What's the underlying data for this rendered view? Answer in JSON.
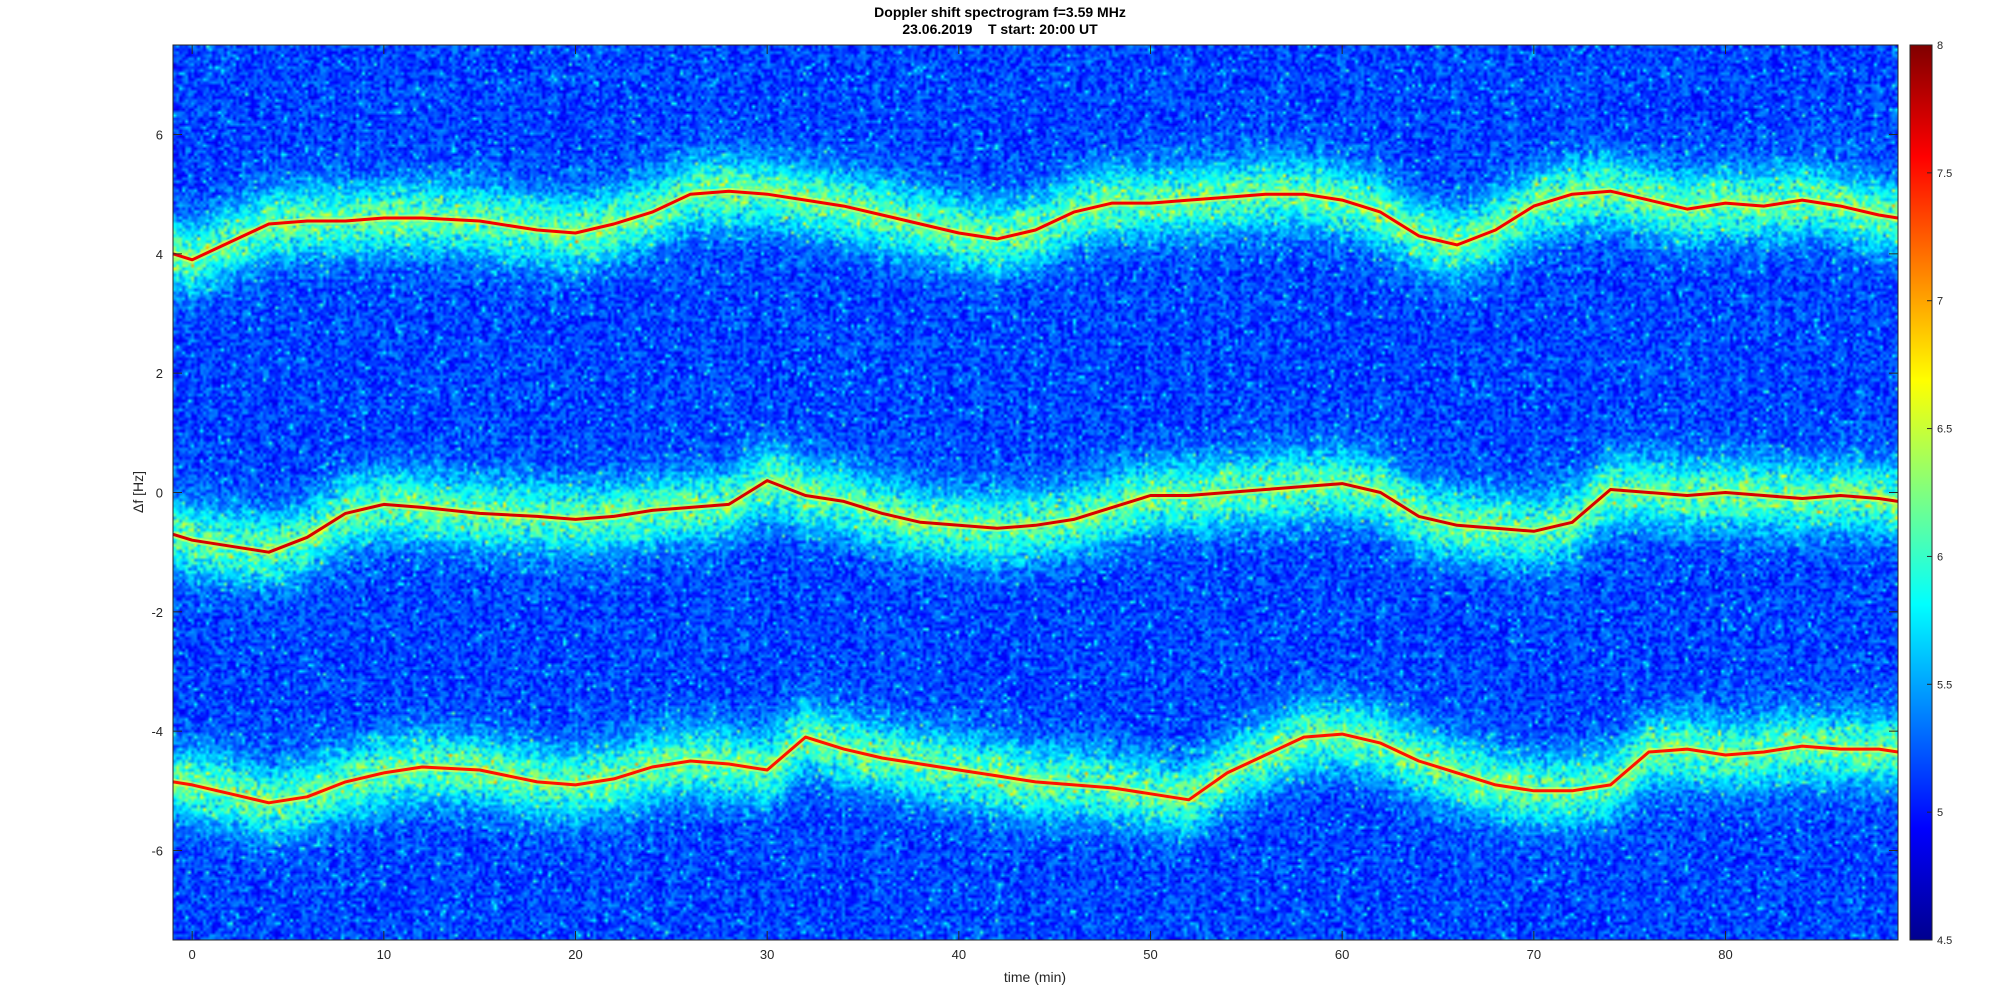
{
  "chart_data": {
    "type": "heatmap",
    "title": "Doppler shift spectrogram f=3.59 MHz",
    "subtitle": "23.06.2019    T start: 20:00 UT",
    "xlabel": "time (min)",
    "ylabel": "Δf [Hz]",
    "xlim": [
      -1,
      89
    ],
    "ylim": [
      -7.5,
      7.5
    ],
    "x_ticks": [
      0,
      10,
      20,
      30,
      40,
      50,
      60,
      70,
      80
    ],
    "y_ticks": [
      -6,
      -4,
      -2,
      0,
      2,
      4,
      6
    ],
    "colorbar": {
      "colormap": "jet",
      "range": [
        4.5,
        8
      ],
      "ticks": [
        4.5,
        5,
        5.5,
        6,
        6.5,
        7,
        7.5,
        8
      ]
    },
    "grid": false,
    "traces": [
      {
        "x": [
          -1,
          0,
          2,
          4,
          6,
          8,
          10,
          12,
          15,
          18,
          20,
          22,
          24,
          26,
          28,
          30,
          32,
          34,
          36,
          38,
          40,
          42,
          44,
          46,
          48,
          50,
          52,
          54,
          56,
          58,
          60,
          62,
          64,
          66,
          68,
          70,
          72,
          74,
          76,
          78,
          80,
          82,
          84,
          86,
          88,
          89
        ],
        "y": [
          4.0,
          3.9,
          4.2,
          4.5,
          4.55,
          4.55,
          4.6,
          4.6,
          4.55,
          4.4,
          4.35,
          4.5,
          4.7,
          5.0,
          5.05,
          5.0,
          4.9,
          4.8,
          4.65,
          4.5,
          4.35,
          4.25,
          4.4,
          4.7,
          4.85,
          4.85,
          4.9,
          4.95,
          5.0,
          5.0,
          4.9,
          4.7,
          4.3,
          4.15,
          4.4,
          4.8,
          5.0,
          5.05,
          4.9,
          4.75,
          4.85,
          4.8,
          4.9,
          4.8,
          4.65,
          4.6
        ],
        "intensity": 7.6
      },
      {
        "x": [
          -1,
          0,
          2,
          4,
          6,
          8,
          10,
          12,
          15,
          18,
          20,
          22,
          24,
          26,
          28,
          30,
          32,
          34,
          36,
          38,
          40,
          42,
          44,
          46,
          48,
          50,
          52,
          54,
          56,
          58,
          60,
          62,
          64,
          66,
          68,
          70,
          72,
          74,
          76,
          78,
          80,
          82,
          84,
          86,
          88,
          89
        ],
        "y": [
          -0.7,
          -0.8,
          -0.9,
          -1.0,
          -0.75,
          -0.35,
          -0.2,
          -0.25,
          -0.35,
          -0.4,
          -0.45,
          -0.4,
          -0.3,
          -0.25,
          -0.2,
          0.2,
          -0.05,
          -0.15,
          -0.35,
          -0.5,
          -0.55,
          -0.6,
          -0.55,
          -0.45,
          -0.25,
          -0.05,
          -0.05,
          0.0,
          0.05,
          0.1,
          0.15,
          0.0,
          -0.4,
          -0.55,
          -0.6,
          -0.65,
          -0.5,
          0.05,
          0.0,
          -0.05,
          0.0,
          -0.05,
          -0.1,
          -0.05,
          -0.1,
          -0.15
        ],
        "intensity": 7.7
      },
      {
        "x": [
          -1,
          0,
          2,
          4,
          6,
          8,
          10,
          12,
          15,
          18,
          20,
          22,
          24,
          26,
          28,
          30,
          32,
          34,
          36,
          38,
          40,
          42,
          44,
          46,
          48,
          50,
          52,
          54,
          56,
          58,
          60,
          62,
          64,
          66,
          68,
          70,
          72,
          74,
          76,
          78,
          80,
          82,
          84,
          86,
          88,
          89
        ],
        "y": [
          -4.85,
          -4.9,
          -5.05,
          -5.2,
          -5.1,
          -4.85,
          -4.7,
          -4.6,
          -4.65,
          -4.85,
          -4.9,
          -4.8,
          -4.6,
          -4.5,
          -4.55,
          -4.65,
          -4.1,
          -4.3,
          -4.45,
          -4.55,
          -4.65,
          -4.75,
          -4.85,
          -4.9,
          -4.95,
          -5.05,
          -5.15,
          -4.7,
          -4.4,
          -4.1,
          -4.05,
          -4.2,
          -4.5,
          -4.7,
          -4.9,
          -5.0,
          -5.0,
          -4.9,
          -4.35,
          -4.3,
          -4.4,
          -4.35,
          -4.25,
          -4.3,
          -4.3,
          -4.35
        ],
        "intensity": 7.5
      }
    ]
  }
}
